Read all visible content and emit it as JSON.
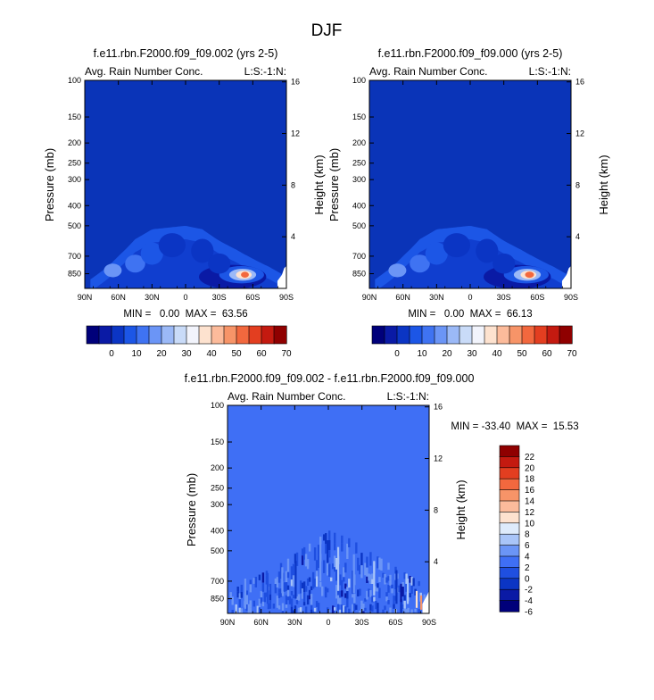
{
  "figure": {
    "title": "DJF"
  },
  "colors": {
    "base": "#0a34b8",
    "diff_base": "#3f6ff5",
    "cmap_main": [
      "#00007a",
      "#0a1aa5",
      "#0b35c4",
      "#1c56e6",
      "#3f73f2",
      "#6b95f6",
      "#9bb9f7",
      "#c9dbf8",
      "#f2f4fc",
      "#fde2cf",
      "#fcbb9b",
      "#f79468",
      "#f2683e",
      "#e33e20",
      "#c41a10",
      "#8f0000"
    ],
    "cmap_diff": [
      "#00007a",
      "#0a1aa5",
      "#0b35c4",
      "#1f4fe0",
      "#3f6ff5",
      "#6b95f6",
      "#a9c5f8",
      "#deebfb",
      "#fde2cf",
      "#fcbb9b",
      "#f79468",
      "#f2683e",
      "#e33e20",
      "#c41a10",
      "#8f0000"
    ]
  },
  "chart_data": [
    {
      "type": "heatmap",
      "title": "f.e11.rbn.F2000.f09_f09.002 (yrs 2-5)",
      "left_label": "Avg. Rain Number Conc.",
      "right_label": "L:S:-1:N:",
      "ylabel": "Pressure (mb)",
      "y2label": "Height (km)",
      "x_ticks": [
        "90N",
        "60N",
        "30N",
        "0",
        "30S",
        "60S",
        "90S"
      ],
      "xlim": [
        -90,
        90
      ],
      "y_ticks": [
        100,
        150,
        200,
        250,
        300,
        400,
        500,
        700,
        850
      ],
      "y2_ticks": [
        4,
        8,
        12,
        16
      ],
      "ylim": [
        100,
        1000
      ],
      "stats": "MIN =   0.00  MAX =  63.56",
      "colorbar_ticks": [
        "0",
        "10",
        "20",
        "30",
        "40",
        "50",
        "60",
        "70"
      ],
      "field": {
        "top_pressure": [
          [
            -85,
            905
          ],
          [
            -70,
            790
          ],
          [
            -60,
            700
          ],
          [
            -45,
            580
          ],
          [
            -30,
            520
          ],
          [
            -15,
            510
          ],
          [
            0,
            500
          ],
          [
            15,
            520
          ],
          [
            30,
            590
          ],
          [
            45,
            650
          ],
          [
            60,
            720
          ],
          [
            75,
            790
          ],
          [
            82,
            830
          ],
          [
            87,
            860
          ]
        ],
        "blobs": [
          {
            "lat": 42,
            "p": 880,
            "level": 1,
            "rx": 30,
            "ry": 200
          },
          {
            "lat": 50,
            "p": 860,
            "level": 3,
            "rx": 20,
            "ry": 130
          },
          {
            "lat": 51,
            "p": 860,
            "level": 6,
            "rx": 12,
            "ry": 80
          },
          {
            "lat": 52,
            "p": 860,
            "level": 9,
            "rx": 7,
            "ry": 45
          },
          {
            "lat": 53,
            "p": 860,
            "level": 12,
            "rx": 3.5,
            "ry": 22
          },
          {
            "lat": -65,
            "p": 820,
            "level": 5,
            "rx": 8,
            "ry": 90
          },
          {
            "lat": -45,
            "p": 760,
            "level": 4,
            "rx": 9,
            "ry": 120
          },
          {
            "lat": -30,
            "p": 680,
            "level": 3,
            "rx": 10,
            "ry": 140
          },
          {
            "lat": -12,
            "p": 620,
            "level": 2,
            "rx": 12,
            "ry": 140
          },
          {
            "lat": 15,
            "p": 660,
            "level": 2,
            "rx": 10,
            "ry": 150
          },
          {
            "lat": 30,
            "p": 760,
            "level": 2,
            "rx": 10,
            "ry": 140
          }
        ]
      }
    },
    {
      "type": "heatmap",
      "title": "f.e11.rbn.F2000.f09_f09.000 (yrs 2-5)",
      "left_label": "Avg. Rain Number Conc.",
      "right_label": "L:S:-1:N:",
      "ylabel": "Pressure (mb)",
      "y2label": "Height (km)",
      "x_ticks": [
        "90N",
        "60N",
        "30N",
        "0",
        "30S",
        "60S",
        "90S"
      ],
      "xlim": [
        -90,
        90
      ],
      "y_ticks": [
        100,
        150,
        200,
        250,
        300,
        400,
        500,
        700,
        850
      ],
      "y2_ticks": [
        4,
        8,
        12,
        16
      ],
      "ylim": [
        100,
        1000
      ],
      "stats": "MIN =   0.00  MAX =  66.13",
      "colorbar_ticks": [
        "0",
        "10",
        "20",
        "30",
        "40",
        "50",
        "60",
        "70"
      ],
      "field": {
        "top_pressure": [
          [
            -85,
            905
          ],
          [
            -70,
            790
          ],
          [
            -60,
            700
          ],
          [
            -45,
            580
          ],
          [
            -30,
            520
          ],
          [
            -15,
            510
          ],
          [
            0,
            500
          ],
          [
            15,
            520
          ],
          [
            30,
            590
          ],
          [
            45,
            650
          ],
          [
            60,
            720
          ],
          [
            75,
            790
          ],
          [
            82,
            830
          ],
          [
            87,
            860
          ]
        ],
        "blobs": [
          {
            "lat": 42,
            "p": 880,
            "level": 1,
            "rx": 30,
            "ry": 200
          },
          {
            "lat": 50,
            "p": 860,
            "level": 3,
            "rx": 20,
            "ry": 130
          },
          {
            "lat": 51,
            "p": 860,
            "level": 6,
            "rx": 12,
            "ry": 80
          },
          {
            "lat": 52,
            "p": 860,
            "level": 9,
            "rx": 7,
            "ry": 45
          },
          {
            "lat": 53,
            "p": 860,
            "level": 12,
            "rx": 4,
            "ry": 24
          },
          {
            "lat": -65,
            "p": 820,
            "level": 5,
            "rx": 8,
            "ry": 90
          },
          {
            "lat": -45,
            "p": 760,
            "level": 4,
            "rx": 9,
            "ry": 120
          },
          {
            "lat": -30,
            "p": 680,
            "level": 3,
            "rx": 10,
            "ry": 140
          },
          {
            "lat": -12,
            "p": 620,
            "level": 2,
            "rx": 12,
            "ry": 140
          },
          {
            "lat": 15,
            "p": 660,
            "level": 2,
            "rx": 10,
            "ry": 150
          },
          {
            "lat": 30,
            "p": 760,
            "level": 2,
            "rx": 10,
            "ry": 140
          }
        ]
      }
    },
    {
      "type": "heatmap",
      "title": "f.e11.rbn.F2000.f09_f09.002 - f.e11.rbn.F2000.f09_f09.000",
      "left_label": "Avg. Rain Number Conc.",
      "right_label": "L:S:-1:N:",
      "ylabel": "Pressure (mb)",
      "y2label": "Height (km)",
      "x_ticks": [
        "90N",
        "60N",
        "30N",
        "0",
        "30S",
        "60S",
        "90S"
      ],
      "xlim": [
        -90,
        90
      ],
      "y_ticks": [
        100,
        150,
        200,
        250,
        300,
        400,
        500,
        700,
        850
      ],
      "y2_ticks": [
        4,
        8,
        12,
        16
      ],
      "ylim": [
        100,
        1000
      ],
      "stats": "MIN = -33.40  MAX =  15.53",
      "colorbar_ticks": [
        "22",
        "20",
        "18",
        "16",
        "14",
        "12",
        "10",
        "8",
        "6",
        "4",
        "2",
        "0",
        "-2",
        "-4",
        "-6"
      ],
      "field": {
        "noise_top_pressure": [
          [
            -85,
            760
          ],
          [
            -60,
            640
          ],
          [
            -40,
            560
          ],
          [
            -20,
            470
          ],
          [
            0,
            400
          ],
          [
            20,
            440
          ],
          [
            40,
            520
          ],
          [
            60,
            600
          ],
          [
            80,
            700
          ],
          [
            87,
            860
          ]
        ],
        "strips": [
          {
            "lat": -75,
            "p0": 680,
            "p1": 950,
            "level": 5
          },
          {
            "lat": -55,
            "p0": 640,
            "p1": 900,
            "level": 3
          },
          {
            "lat": -42,
            "p0": 600,
            "p1": 800,
            "level": 5
          },
          {
            "lat": -30,
            "p0": 560,
            "p1": 850,
            "level": 2
          },
          {
            "lat": -8,
            "p0": 450,
            "p1": 700,
            "level": 5
          },
          {
            "lat": 8,
            "p0": 480,
            "p1": 780,
            "level": 6
          },
          {
            "lat": 22,
            "p0": 520,
            "p1": 800,
            "level": 5
          },
          {
            "lat": 40,
            "p0": 560,
            "p1": 820,
            "level": 6
          },
          {
            "lat": 60,
            "p0": 620,
            "p1": 900,
            "level": 2
          },
          {
            "lat": 64,
            "p0": 720,
            "p1": 880,
            "level": 1
          },
          {
            "lat": 70,
            "p0": 680,
            "p1": 900,
            "level": 6
          },
          {
            "lat": 78,
            "p0": 780,
            "p1": 940,
            "level": 8
          },
          {
            "lat": 82,
            "p0": 820,
            "p1": 960,
            "level": 10
          }
        ]
      }
    }
  ]
}
